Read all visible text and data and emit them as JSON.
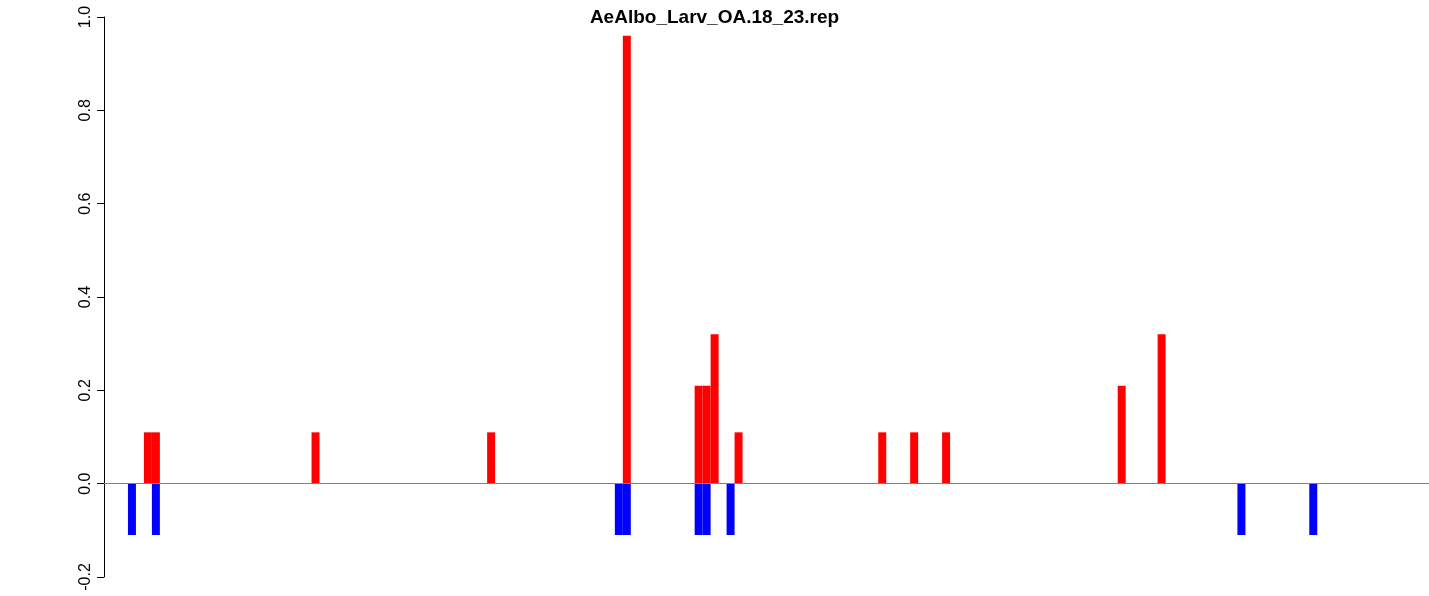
{
  "chart_data": {
    "type": "bar",
    "title": "AeAlbo_Larv_OA.18_23.rep",
    "categories": [
      null,
      null,
      null,
      null,
      null,
      null,
      null,
      null,
      null,
      null,
      null,
      null,
      null,
      null,
      null,
      null,
      null,
      null,
      null,
      null,
      null,
      null,
      null,
      null,
      null,
      null,
      null,
      null,
      null,
      null,
      null,
      null,
      null,
      null,
      null,
      null,
      null,
      null,
      null,
      null,
      null,
      null,
      null,
      null,
      null,
      null,
      null,
      null,
      null,
      null,
      null,
      null,
      null,
      null,
      null,
      null,
      null,
      null,
      null,
      null,
      null,
      null,
      null,
      null,
      null,
      null,
      null,
      null,
      null,
      null,
      null,
      null,
      null,
      null,
      null,
      null,
      null,
      null,
      null,
      null,
      null,
      null,
      null,
      null,
      null,
      null,
      null,
      null,
      null,
      null,
      null,
      null,
      null,
      null,
      null,
      null,
      null,
      null,
      null,
      null,
      null,
      null,
      null,
      null,
      null,
      null,
      null,
      null,
      null,
      null,
      null,
      null,
      null,
      null,
      null,
      null,
      null,
      null,
      null,
      null,
      null,
      null,
      null,
      null,
      null,
      null,
      null,
      null,
      null,
      null,
      null,
      null,
      null,
      null,
      null,
      null,
      null,
      null,
      null,
      null,
      null,
      null,
      null,
      null,
      null,
      null,
      null,
      null,
      null,
      null,
      null,
      null,
      null,
      null,
      null,
      null,
      null,
      null,
      null,
      null,
      null,
      null,
      null,
      null,
      null,
      null
    ],
    "series": [
      {
        "color": "#ff0000",
        "values": [
          null,
          null,
          null,
          null,
          null,
          0.11,
          0.11,
          null,
          null,
          null,
          null,
          null,
          null,
          null,
          null,
          null,
          null,
          null,
          null,
          null,
          null,
          null,
          null,
          null,
          null,
          null,
          0.11,
          null,
          null,
          null,
          null,
          null,
          null,
          null,
          null,
          null,
          null,
          null,
          null,
          null,
          null,
          null,
          null,
          null,
          null,
          null,
          null,
          null,
          0.11,
          null,
          null,
          null,
          null,
          null,
          null,
          null,
          null,
          null,
          null,
          null,
          null,
          null,
          null,
          null,
          null,
          0.96,
          null,
          null,
          null,
          null,
          null,
          null,
          null,
          null,
          0.21,
          0.21,
          0.32,
          null,
          null,
          0.11,
          null,
          null,
          null,
          null,
          null,
          null,
          null,
          null,
          null,
          null,
          null,
          null,
          null,
          null,
          null,
          null,
          null,
          0.11,
          null,
          null,
          null,
          0.11,
          null,
          null,
          null,
          0.11,
          null,
          null,
          null,
          null,
          null,
          null,
          null,
          null,
          null,
          null,
          null,
          null,
          null,
          null,
          null,
          null,
          null,
          null,
          null,
          null,
          null,
          0.21,
          null,
          null,
          null,
          null,
          0.32,
          null,
          null,
          null,
          null,
          null,
          null,
          null,
          null,
          null,
          null,
          null,
          null,
          null,
          null,
          null,
          null,
          null,
          null,
          null,
          null,
          null,
          null,
          null,
          null,
          null,
          null,
          null,
          null,
          null,
          null,
          null,
          null,
          null
        ]
      },
      {
        "color": "#0000ff",
        "values": [
          null,
          null,
          null,
          -0.11,
          null,
          null,
          -0.11,
          null,
          null,
          null,
          null,
          null,
          null,
          null,
          null,
          null,
          null,
          null,
          null,
          null,
          null,
          null,
          null,
          null,
          null,
          null,
          null,
          null,
          null,
          null,
          null,
          null,
          null,
          null,
          null,
          null,
          null,
          null,
          null,
          null,
          null,
          null,
          null,
          null,
          null,
          null,
          null,
          null,
          null,
          null,
          null,
          null,
          null,
          null,
          null,
          null,
          null,
          null,
          null,
          null,
          null,
          null,
          null,
          null,
          -0.11,
          -0.11,
          null,
          null,
          null,
          null,
          null,
          null,
          null,
          null,
          -0.11,
          -0.11,
          null,
          null,
          -0.11,
          null,
          null,
          null,
          null,
          null,
          null,
          null,
          null,
          null,
          null,
          null,
          null,
          null,
          null,
          null,
          null,
          null,
          null,
          null,
          null,
          null,
          null,
          null,
          null,
          null,
          null,
          null,
          null,
          null,
          null,
          null,
          null,
          null,
          null,
          null,
          null,
          null,
          null,
          null,
          null,
          null,
          null,
          null,
          null,
          null,
          null,
          null,
          null,
          null,
          null,
          null,
          null,
          null,
          null,
          null,
          null,
          null,
          null,
          null,
          null,
          null,
          null,
          null,
          -0.11,
          null,
          null,
          null,
          null,
          null,
          null,
          null,
          null,
          -0.11,
          null,
          null,
          null,
          null,
          null,
          null,
          null,
          null,
          null,
          null,
          null,
          null,
          null,
          null
        ]
      }
    ],
    "ylim": [
      -0.2,
      1.0
    ],
    "yticks": [
      -0.2,
      {
        "value": 0,
        "label": "0.0"
      },
      0.2,
      0.4,
      0.6,
      0.8,
      {
        "value": 1,
        "label": "1.0"
      }
    ],
    "ref_lines": [
      {
        "axis": "y",
        "value": 0,
        "color": "#808080"
      }
    ],
    "tick_labels": "y"
  }
}
